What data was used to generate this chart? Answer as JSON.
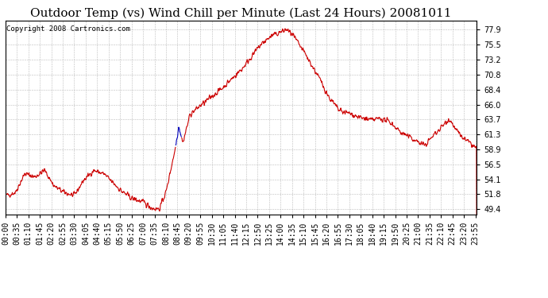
{
  "title": "Outdoor Temp (vs) Wind Chill per Minute (Last 24 Hours) 20081011",
  "copyright": "Copyright 2008 Cartronics.com",
  "yticks": [
    49.4,
    51.8,
    54.1,
    56.5,
    58.9,
    61.3,
    63.7,
    66.0,
    68.4,
    70.8,
    73.2,
    75.5,
    77.9
  ],
  "ymin": 48.5,
  "ymax": 79.3,
  "line_color": "#cc0000",
  "blue_segment_color": "#0000bb",
  "bg_color": "#ffffff",
  "plot_bg_color": "#ffffff",
  "grid_color": "#aaaaaa",
  "title_fontsize": 11,
  "copyright_fontsize": 6.5,
  "tick_fontsize": 7,
  "xtick_interval": 35
}
